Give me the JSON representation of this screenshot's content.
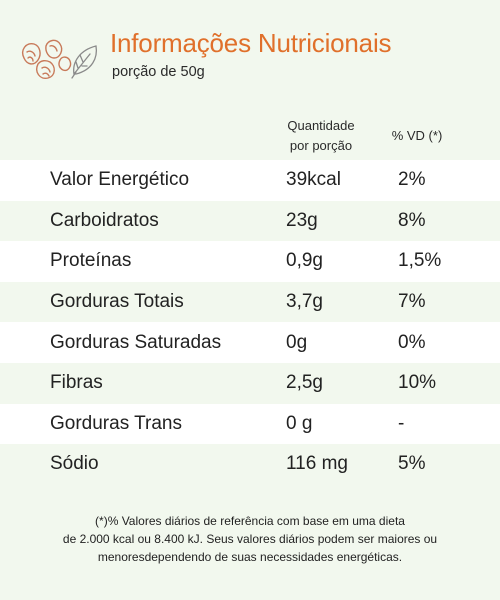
{
  "header": {
    "title": "Informações Nutricionais",
    "subtitle": "porção de 50g",
    "logo_icon": "leaf-nut-icon",
    "accent_color": "#e0702b"
  },
  "table": {
    "col_quantity_line1": "Quantidade",
    "col_quantity_line2": "por porção",
    "col_vd": "% VD (*)",
    "rows": [
      {
        "name": "Valor Energético",
        "qty": "39kcal",
        "vd": "2%"
      },
      {
        "name": "Carboidratos",
        "qty": "23g",
        "vd": "8%"
      },
      {
        "name": "Proteínas",
        "qty": "0,9g",
        "vd": "1,5%"
      },
      {
        "name": "Gorduras Totais",
        "qty": "3,7g",
        "vd": "7%"
      },
      {
        "name": "Gorduras Saturadas",
        "qty": "0g",
        "vd": "0%"
      },
      {
        "name": "Fibras",
        "qty": "2,5g",
        "vd": "10%"
      },
      {
        "name": "Gorduras Trans",
        "qty": "0 g",
        "vd": "-"
      },
      {
        "name": "Sódio",
        "qty": "116 mg",
        "vd": "5%"
      }
    ]
  },
  "footnote": {
    "line1": "(*)% Valores diários de referência com base em uma dieta",
    "line2": "de 2.000 kcal ou 8.400 kJ. Seus valores diários podem ser maiores ou",
    "line3": "menoresdependendo de suas necessidades energéticas."
  }
}
